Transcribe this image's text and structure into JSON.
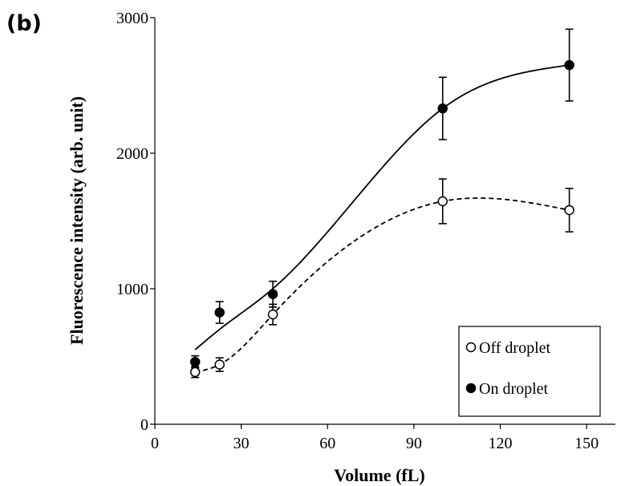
{
  "panel_label": "(b)",
  "chart_data": {
    "type": "scatter",
    "title": "",
    "xlabel": "Volume (fL)",
    "ylabel": "Fluorescence intensity (arb. unit)",
    "xlim": [
      0,
      160
    ],
    "ylim": [
      0,
      3000
    ],
    "xticks": [
      "0",
      "30",
      "60",
      "90",
      "120",
      "150"
    ],
    "yticks": [
      "0",
      "1000",
      "2000",
      "3000"
    ],
    "grid": false,
    "legend_position": "bottom-right",
    "series": [
      {
        "name": "Off droplet",
        "marker": "open-circle",
        "line": "dashed",
        "color": "#000000",
        "x": [
          14,
          22.5,
          41,
          100,
          144
        ],
        "y": [
          385,
          440,
          810,
          1645,
          1580
        ],
        "err": [
          40,
          50,
          75,
          165,
          160
        ]
      },
      {
        "name": "On droplet",
        "marker": "filled-circle",
        "line": "solid",
        "color": "#000000",
        "x": [
          14,
          22.5,
          41,
          100,
          144
        ],
        "y": [
          460,
          825,
          960,
          2330,
          2650
        ],
        "err": [
          45,
          80,
          95,
          230,
          265
        ]
      }
    ]
  }
}
